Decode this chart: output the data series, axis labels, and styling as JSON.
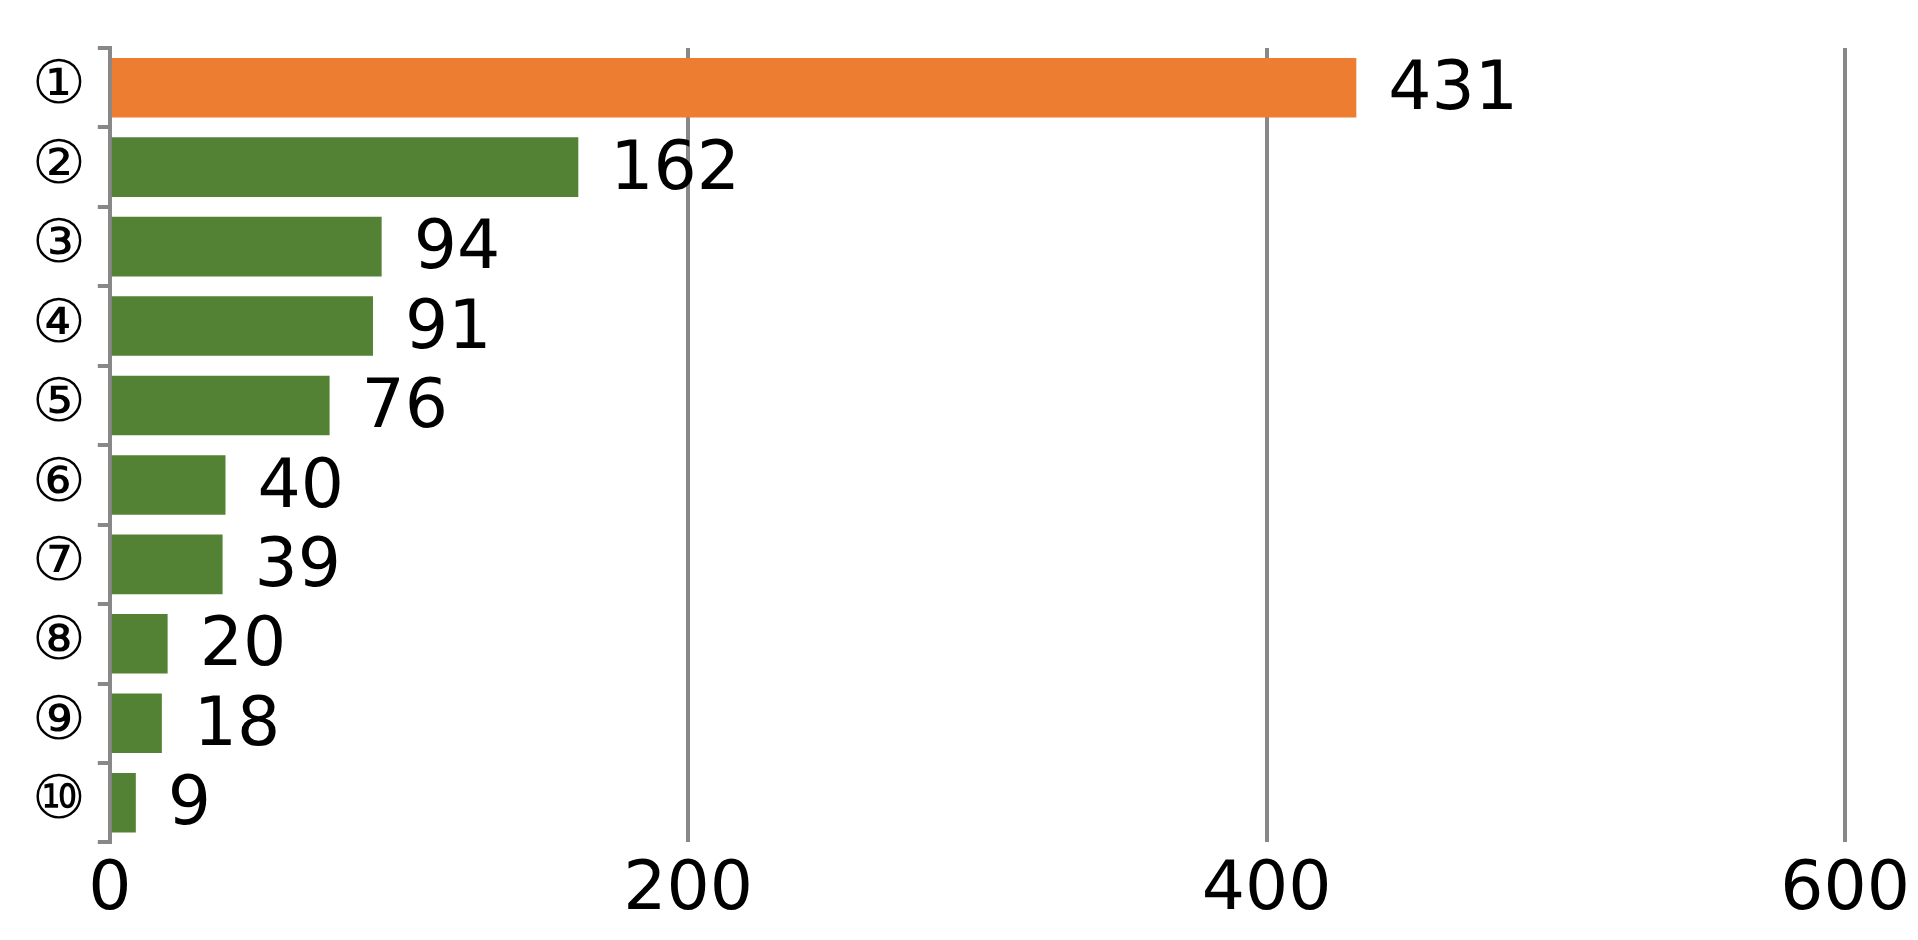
{
  "chart_data": {
    "type": "bar",
    "orientation": "horizontal",
    "categories": [
      "①",
      "②",
      "③",
      "④",
      "⑤",
      "⑥",
      "⑦",
      "⑧",
      "⑨",
      "⑩"
    ],
    "values": [
      431,
      162,
      94,
      91,
      76,
      40,
      39,
      20,
      18,
      9
    ],
    "colors": [
      "#ed7d31",
      "#548235",
      "#548235",
      "#548235",
      "#548235",
      "#548235",
      "#548235",
      "#548235",
      "#548235",
      "#548235"
    ],
    "xlim": [
      0,
      600
    ],
    "xticks": [
      0,
      200,
      400,
      600
    ],
    "grid": "x",
    "data_labels": true
  }
}
